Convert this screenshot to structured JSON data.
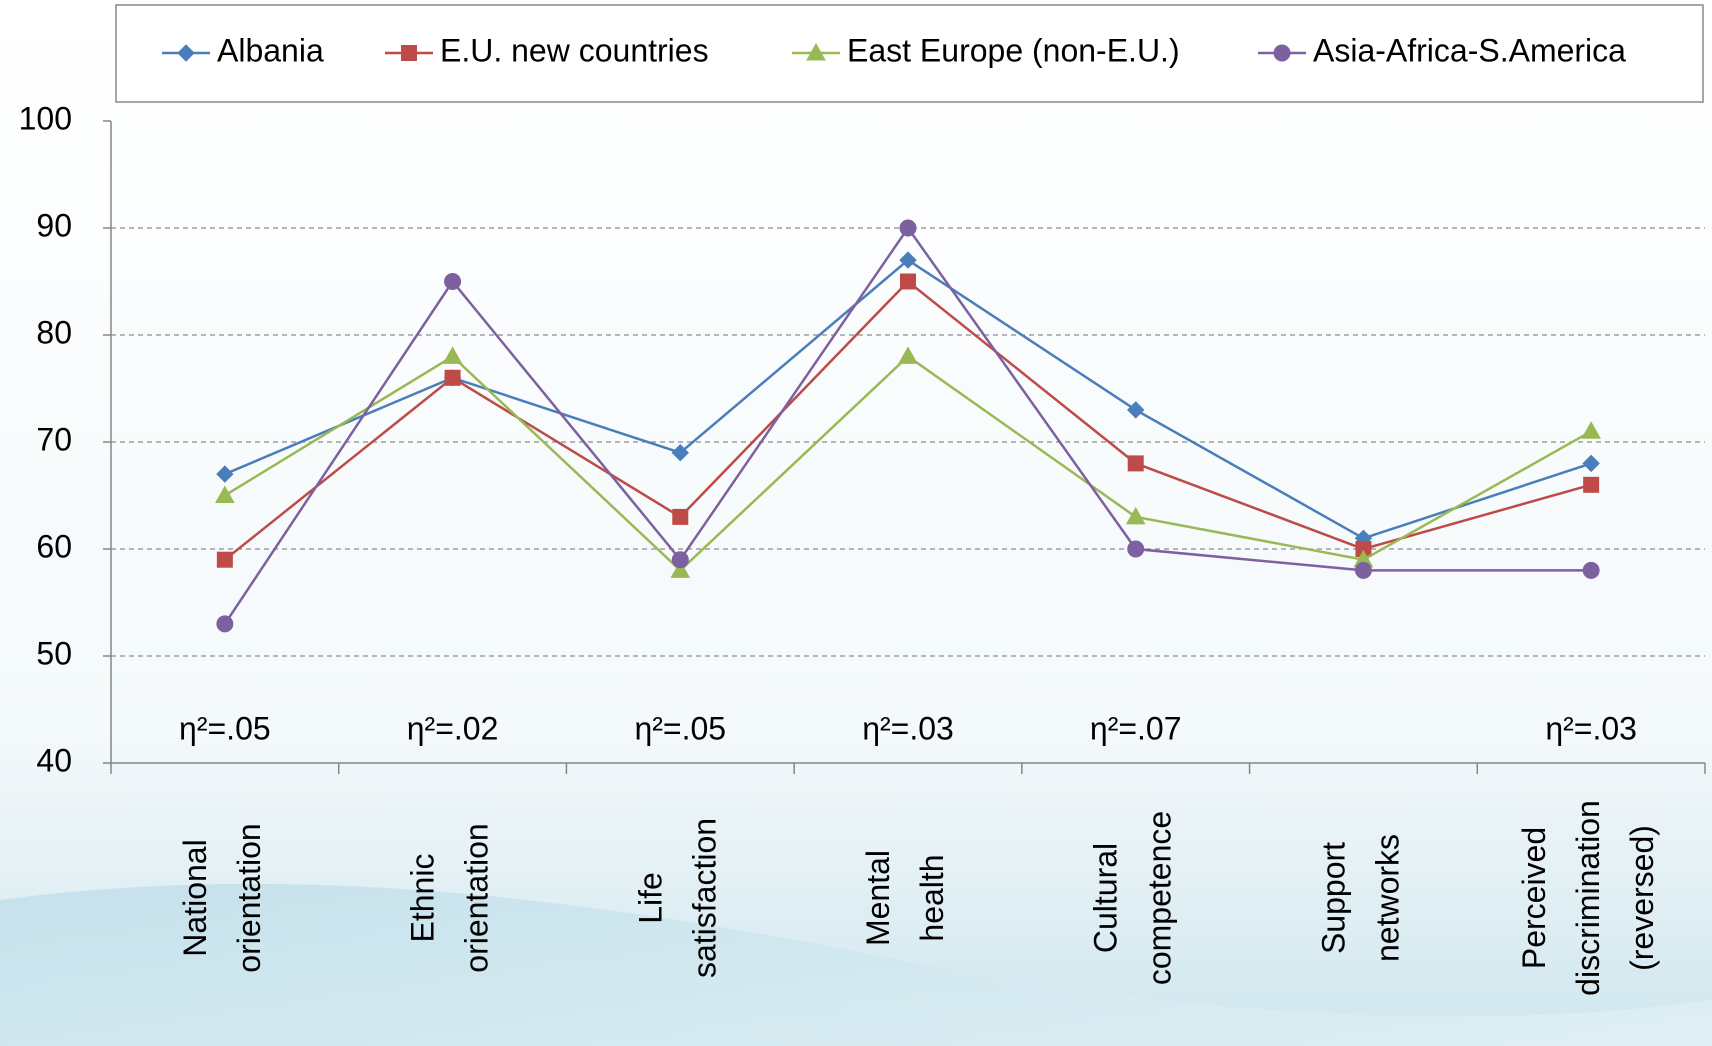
{
  "chart_data": {
    "type": "line",
    "categories": [
      "National orientation",
      "Ethnic orientation",
      "Life satisfaction",
      "Mental health",
      "Cultural competence",
      "Support networks",
      "Perceived discrimination (reversed)"
    ],
    "series": [
      {
        "name": "Albania",
        "color": "#4a7ebb",
        "marker": "diamond",
        "values": [
          67,
          76,
          69,
          87,
          73,
          61,
          68
        ]
      },
      {
        "name": "E.U. new countries",
        "color": "#be4b48",
        "marker": "square",
        "values": [
          59,
          76,
          63,
          85,
          68,
          60,
          66
        ]
      },
      {
        "name": "East Europe (non-E.U.)",
        "color": "#98b954",
        "marker": "triangle",
        "values": [
          65,
          78,
          58,
          78,
          63,
          59,
          71
        ]
      },
      {
        "name": "Asia-Africa-S.America",
        "color": "#7d60a0",
        "marker": "circle",
        "values": [
          53,
          85,
          59,
          90,
          60,
          58,
          58
        ]
      }
    ],
    "annotations": [
      "η²=.05",
      "η²=.02",
      "η²=.05",
      "η²=.03",
      "η²=.07",
      null,
      "η²=.03"
    ],
    "ylim": [
      40,
      100
    ],
    "yticks": [
      40,
      50,
      60,
      70,
      80,
      90,
      100
    ],
    "grid": true,
    "legend": "top"
  }
}
